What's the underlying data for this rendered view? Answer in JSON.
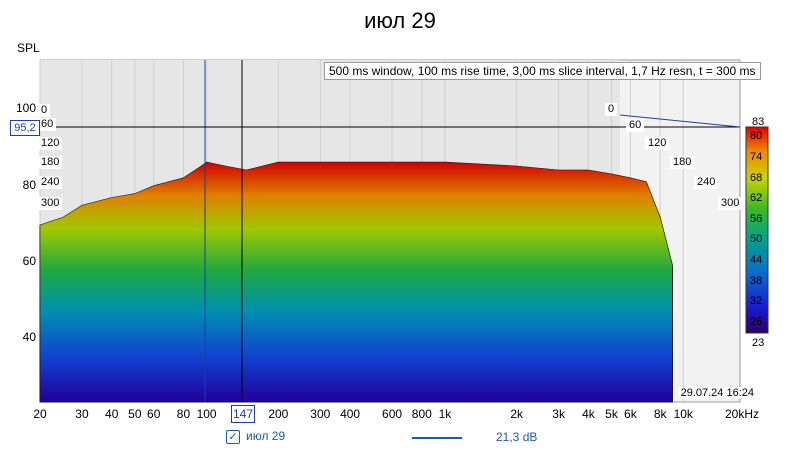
{
  "title": "июл 29",
  "info": "500 ms window, 100 ms rise time, 3,00 ms slice interval, 1,7 Hz resn, t = 300 ms",
  "date": "29.07.24 16:24",
  "cursor": {
    "x_value": "147",
    "y_value": "95,2"
  },
  "colorbar": {
    "top_label": "83",
    "bottom_label": "23",
    "ticks": [
      "80",
      "74",
      "68",
      "62",
      "56",
      "50",
      "44",
      "38",
      "32",
      "26"
    ]
  },
  "legend": {
    "series_name": "июл 29",
    "checked": true,
    "value": "21,3 dB",
    "color": "#1b5ea8"
  },
  "time_labels_left": [
    "0",
    "60",
    "120",
    "180",
    "240",
    "300"
  ],
  "time_labels_right": [
    "0",
    "60",
    "120",
    "180",
    "240",
    "300"
  ],
  "chart_data": {
    "type": "area",
    "title": "июл 29",
    "ylabel": "SPL",
    "xlabel": "",
    "x_scale": "log",
    "xlim": [
      20,
      20000
    ],
    "ylim": [
      25,
      105
    ],
    "x_ticks": [
      "20",
      "30",
      "40",
      "50",
      "60",
      "80",
      "100",
      "200",
      "300",
      "400",
      "600",
      "800",
      "1k",
      "2k",
      "3k",
      "4k",
      "5k",
      "6k",
      "8k",
      "10k",
      "20kHz"
    ],
    "x_tick_values": [
      20,
      30,
      40,
      50,
      60,
      80,
      100,
      200,
      300,
      400,
      600,
      800,
      1000,
      2000,
      3000,
      4000,
      5000,
      6000,
      8000,
      10000,
      20000
    ],
    "y_ticks": [
      "100",
      "80",
      "60",
      "40"
    ],
    "y_tick_values": [
      100,
      80,
      60,
      40
    ],
    "time_axis_ms": [
      0,
      60,
      120,
      180,
      240,
      300
    ],
    "colorscale_range_db": [
      23,
      83
    ],
    "front_slice": {
      "freq": [
        20,
        25,
        30,
        40,
        50,
        60,
        80,
        95,
        100,
        120,
        147,
        200,
        300,
        400,
        600,
        800,
        1000,
        2000,
        3000,
        4000,
        5000,
        6000,
        7000,
        8000,
        9000
      ],
      "spl": [
        70,
        72,
        75,
        77,
        78,
        80,
        82,
        85,
        86,
        85,
        84,
        86,
        86,
        86,
        86,
        86,
        86,
        85,
        84,
        84,
        83,
        82,
        81,
        72,
        60
      ]
    }
  }
}
